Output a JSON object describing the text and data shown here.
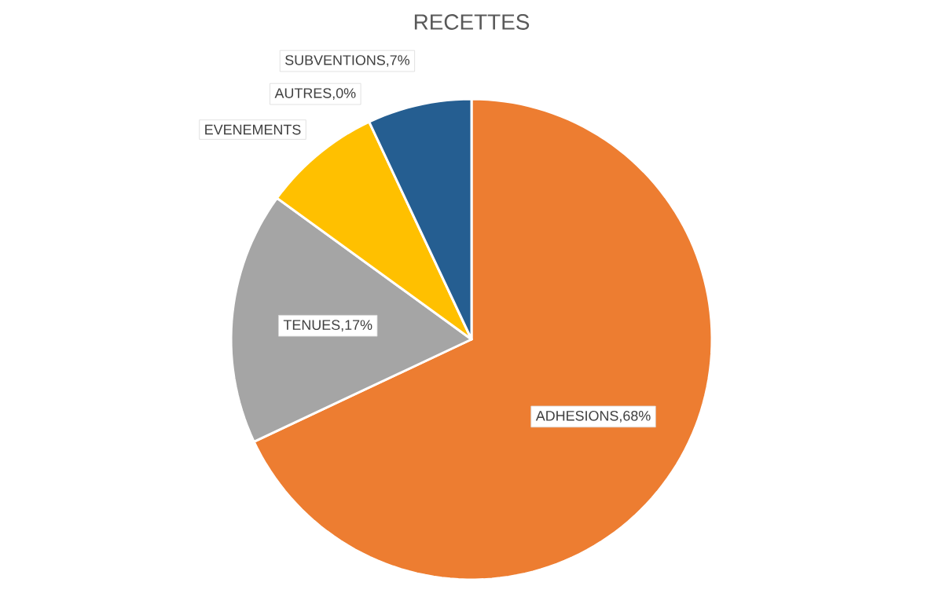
{
  "chart_data": {
    "type": "pie",
    "title": "RECETTES",
    "categories": [
      "ADHESIONS",
      "TENUES",
      "EVENEMENTS",
      "AUTRES",
      "SUBVENTIONS"
    ],
    "values": [
      68,
      17,
      8,
      0,
      7
    ],
    "colors": [
      "#ed7d31",
      "#a5a5a5",
      "#ffc000",
      "#4472c4",
      "#255e91"
    ],
    "value_labels": [
      ",68%",
      ",17%",
      null,
      ",0%",
      ",7%"
    ]
  }
}
